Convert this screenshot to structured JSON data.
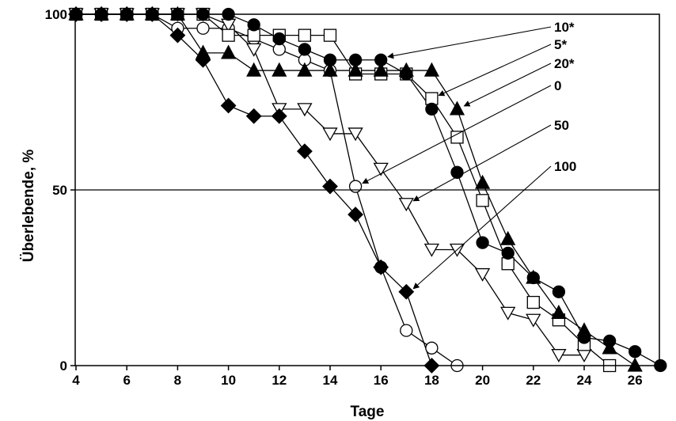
{
  "chart_data": {
    "type": "line",
    "xlabel": "Tage",
    "ylabel": "Überlebende, %",
    "xlim": [
      4,
      27
    ],
    "ylim": [
      0,
      100
    ],
    "xticks": [
      4,
      6,
      8,
      10,
      12,
      14,
      16,
      18,
      20,
      22,
      24,
      26
    ],
    "yticks": [
      0,
      50,
      100
    ],
    "reference_line_y": 50,
    "grid": false,
    "series": [
      {
        "name": "10*",
        "marker": "circle-filled",
        "x": [
          4,
          5,
          6,
          7,
          8,
          9,
          10,
          11,
          12,
          13,
          14,
          15,
          16,
          17,
          18,
          19,
          20,
          21,
          22,
          23,
          24,
          25,
          26,
          27
        ],
        "y": [
          100,
          100,
          100,
          100,
          100,
          100,
          100,
          97,
          93,
          90,
          87,
          87,
          87,
          83,
          73,
          55,
          35,
          32,
          25,
          21,
          8,
          7,
          4,
          0
        ]
      },
      {
        "name": "5*",
        "marker": "square-open",
        "x": [
          4,
          5,
          6,
          7,
          8,
          9,
          10,
          11,
          12,
          13,
          14,
          15,
          16,
          17,
          18,
          19,
          20,
          21,
          22,
          23,
          24,
          25
        ],
        "y": [
          100,
          100,
          100,
          100,
          100,
          100,
          94,
          94,
          94,
          94,
          94,
          83,
          83,
          83,
          76,
          65,
          47,
          29,
          18,
          13,
          6,
          0
        ]
      },
      {
        "name": "20*",
        "marker": "triangle-filled",
        "x": [
          4,
          5,
          6,
          7,
          8,
          9,
          10,
          11,
          12,
          13,
          14,
          15,
          16,
          17,
          18,
          19,
          20,
          21,
          22,
          23,
          24,
          25,
          26
        ],
        "y": [
          100,
          100,
          100,
          100,
          100,
          89,
          89,
          84,
          84,
          84,
          84,
          84,
          84,
          84,
          84,
          73,
          52,
          36,
          25,
          15,
          10,
          5,
          0
        ]
      },
      {
        "name": "0",
        "marker": "circle-open",
        "x": [
          4,
          5,
          6,
          7,
          8,
          9,
          10,
          11,
          12,
          13,
          14,
          15,
          16,
          17,
          18,
          19
        ],
        "y": [
          100,
          100,
          100,
          100,
          96,
          96,
          96,
          93,
          90,
          87,
          84,
          51,
          28,
          10,
          5,
          0
        ]
      },
      {
        "name": "50",
        "marker": "triangle-down-open",
        "x": [
          4,
          5,
          6,
          7,
          8,
          9,
          10,
          11,
          12,
          13,
          14,
          15,
          16,
          17,
          18,
          19,
          20,
          21,
          22,
          23,
          24
        ],
        "y": [
          100,
          100,
          100,
          100,
          100,
          100,
          97,
          90,
          73,
          73,
          66,
          66,
          56,
          46,
          33,
          33,
          26,
          15,
          13,
          3,
          3
        ]
      },
      {
        "name": "100",
        "marker": "diamond-filled",
        "x": [
          4,
          5,
          6,
          7,
          8,
          9,
          10,
          11,
          12,
          13,
          14,
          15,
          16,
          17,
          18
        ],
        "y": [
          100,
          100,
          100,
          100,
          94,
          87,
          74,
          71,
          71,
          61,
          51,
          43,
          28,
          21,
          0
        ]
      }
    ],
    "annotations": [
      {
        "label": "10*",
        "series": "10*",
        "point": [
          16,
          87
        ]
      },
      {
        "label": "5*",
        "series": "5*",
        "point": [
          18,
          76
        ]
      },
      {
        "label": "20*",
        "series": "20*",
        "point": [
          19,
          73
        ]
      },
      {
        "label": "0",
        "series": "0",
        "point": [
          15,
          51
        ]
      },
      {
        "label": "50",
        "series": "50",
        "point": [
          17,
          46
        ]
      },
      {
        "label": "100",
        "series": "100",
        "point": [
          17,
          21
        ]
      }
    ]
  }
}
